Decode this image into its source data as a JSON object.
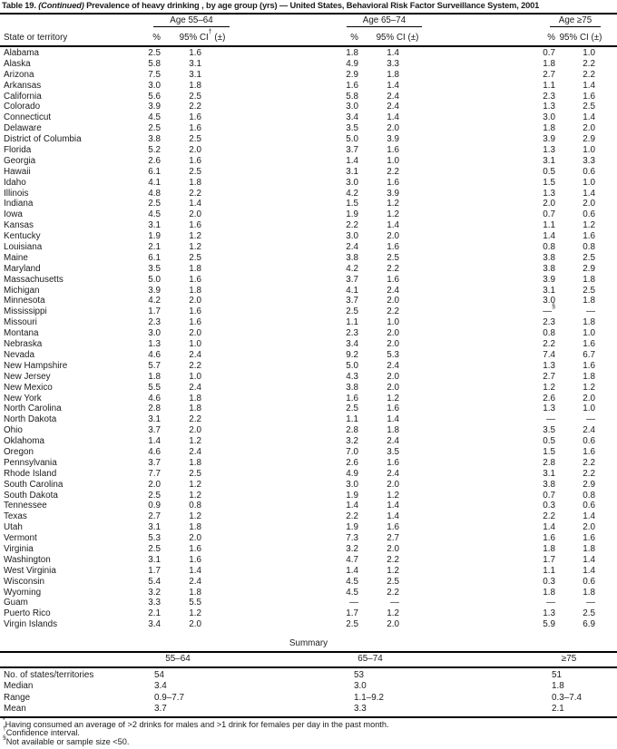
{
  "title": {
    "part1": "Table 19. ",
    "continued": "(Continued)",
    "part2": " Prevalence of heavy drinking",
    "footnote_marker": "*",
    "part3": ", by age group (yrs) — United States, Behavioral Risk Factor Surveillance System, 2001"
  },
  "header": {
    "state_col": "State or territory",
    "groups": [
      {
        "label": "Age 55–64",
        "pct": "%",
        "ci": "95% CI",
        "ci_marker": "†",
        "ci_suffix": " (±)"
      },
      {
        "label": "Age 65–74",
        "pct": "%",
        "ci": "95% CI",
        "ci_marker": "",
        "ci_suffix": " (±)"
      },
      {
        "label": "Age ≥75",
        "pct": "%",
        "ci": "95% CI",
        "ci_marker": "",
        "ci_suffix": " (±)"
      }
    ]
  },
  "table": {
    "rows": [
      [
        "Alabama",
        "2.5",
        "1.6",
        "1.8",
        "1.4",
        "0.7",
        "1.0"
      ],
      [
        "Alaska",
        "5.8",
        "3.1",
        "4.9",
        "3.3",
        "1.8",
        "2.2"
      ],
      [
        "Arizona",
        "7.5",
        "3.1",
        "2.9",
        "1.8",
        "2.7",
        "2.2"
      ],
      [
        "Arkansas",
        "3.0",
        "1.8",
        "1.6",
        "1.4",
        "1.1",
        "1.4"
      ],
      [
        "California",
        "5.6",
        "2.5",
        "5.8",
        "2.4",
        "2.3",
        "1.6"
      ],
      [
        "Colorado",
        "3.9",
        "2.2",
        "3.0",
        "2.4",
        "1.3",
        "2.5"
      ],
      [
        "Connecticut",
        "4.5",
        "1.6",
        "3.4",
        "1.4",
        "3.0",
        "1.4"
      ],
      [
        "Delaware",
        "2.5",
        "1.6",
        "3.5",
        "2.0",
        "1.8",
        "2.0"
      ],
      [
        "District of Columbia",
        "3.8",
        "2.5",
        "5.0",
        "3.9",
        "3.9",
        "2.9"
      ],
      [
        "Florida",
        "5.2",
        "2.0",
        "3.7",
        "1.6",
        "1.3",
        "1.0"
      ],
      [
        "Georgia",
        "2.6",
        "1.6",
        "1.4",
        "1.0",
        "3.1",
        "3.3"
      ],
      [
        "Hawaii",
        "6.1",
        "2.5",
        "3.1",
        "2.2",
        "0.5",
        "0.6"
      ],
      [
        "Idaho",
        "4.1",
        "1.8",
        "3.0",
        "1.6",
        "1.5",
        "1.0"
      ],
      [
        "Illinois",
        "4.8",
        "2.2",
        "4.2",
        "3.9",
        "1.3",
        "1.4"
      ],
      [
        "Indiana",
        "2.5",
        "1.4",
        "1.5",
        "1.2",
        "2.0",
        "2.0"
      ],
      [
        "Iowa",
        "4.5",
        "2.0",
        "1.9",
        "1.2",
        "0.7",
        "0.6"
      ],
      [
        "Kansas",
        "3.1",
        "1.6",
        "2.2",
        "1.4",
        "1.1",
        "1.2"
      ],
      [
        "Kentucky",
        "1.9",
        "1.2",
        "3.0",
        "2.0",
        "1.4",
        "1.6"
      ],
      [
        "Louisiana",
        "2.1",
        "1.2",
        "2.4",
        "1.6",
        "0.8",
        "0.8"
      ],
      [
        "Maine",
        "6.1",
        "2.5",
        "3.8",
        "2.5",
        "3.8",
        "2.5"
      ],
      [
        "Maryland",
        "3.5",
        "1.8",
        "4.2",
        "2.2",
        "3.8",
        "2.9"
      ],
      [
        "Massachusetts",
        "5.0",
        "1.6",
        "3.7",
        "1.6",
        "3.9",
        "1.8"
      ],
      [
        "Michigan",
        "3.9",
        "1.8",
        "4.1",
        "2.4",
        "3.1",
        "2.5"
      ],
      [
        "Minnesota",
        "4.2",
        "2.0",
        "3.7",
        "2.0",
        "3.0",
        "1.8"
      ],
      [
        "Mississippi",
        "1.7",
        "1.6",
        "2.5",
        "2.2",
        "—§",
        "—"
      ],
      [
        "Missouri",
        "2.3",
        "1.6",
        "1.1",
        "1.0",
        "2.3",
        "1.8"
      ],
      [
        "Montana",
        "3.0",
        "2.0",
        "2.3",
        "2.0",
        "0.8",
        "1.0"
      ],
      [
        "Nebraska",
        "1.3",
        "1.0",
        "3.4",
        "2.0",
        "2.2",
        "1.6"
      ],
      [
        "Nevada",
        "4.6",
        "2.4",
        "9.2",
        "5.3",
        "7.4",
        "6.7"
      ],
      [
        "New Hampshire",
        "5.7",
        "2.2",
        "5.0",
        "2.4",
        "1.3",
        "1.6"
      ],
      [
        "New Jersey",
        "1.8",
        "1.0",
        "4.3",
        "2.0",
        "2.7",
        "1.8"
      ],
      [
        "New Mexico",
        "5.5",
        "2.4",
        "3.8",
        "2.0",
        "1.2",
        "1.2"
      ],
      [
        "New York",
        "4.6",
        "1.8",
        "1.6",
        "1.2",
        "2.6",
        "2.0"
      ],
      [
        "North Carolina",
        "2.8",
        "1.8",
        "2.5",
        "1.6",
        "1.3",
        "1.0"
      ],
      [
        "North Dakota",
        "3.1",
        "2.2",
        "1.1",
        "1.4",
        "—",
        "—"
      ],
      [
        "Ohio",
        "3.7",
        "2.0",
        "2.8",
        "1.8",
        "3.5",
        "2.4"
      ],
      [
        "Oklahoma",
        "1.4",
        "1.2",
        "3.2",
        "2.4",
        "0.5",
        "0.6"
      ],
      [
        "Oregon",
        "4.6",
        "2.4",
        "7.0",
        "3.5",
        "1.5",
        "1.6"
      ],
      [
        "Pennsylvania",
        "3.7",
        "1.8",
        "2.6",
        "1.6",
        "2.8",
        "2.2"
      ],
      [
        "Rhode Island",
        "7.7",
        "2.5",
        "4.9",
        "2.4",
        "3.1",
        "2.2"
      ],
      [
        "South Carolina",
        "2.0",
        "1.2",
        "3.0",
        "2.0",
        "3.8",
        "2.9"
      ],
      [
        "South Dakota",
        "2.5",
        "1.2",
        "1.9",
        "1.2",
        "0.7",
        "0.8"
      ],
      [
        "Tennessee",
        "0.9",
        "0.8",
        "1.4",
        "1.4",
        "0.3",
        "0.6"
      ],
      [
        "Texas",
        "2.7",
        "1.2",
        "2.2",
        "1.4",
        "2.2",
        "1.4"
      ],
      [
        "Utah",
        "3.1",
        "1.8",
        "1.9",
        "1.6",
        "1.4",
        "2.0"
      ],
      [
        "Vermont",
        "5.3",
        "2.0",
        "7.3",
        "2.7",
        "1.6",
        "1.6"
      ],
      [
        "Virginia",
        "2.5",
        "1.6",
        "3.2",
        "2.0",
        "1.8",
        "1.8"
      ],
      [
        "Washington",
        "3.1",
        "1.6",
        "4.7",
        "2.2",
        "1.7",
        "1.4"
      ],
      [
        "West Virginia",
        "1.7",
        "1.4",
        "1.4",
        "1.2",
        "1.1",
        "1.4"
      ],
      [
        "Wisconsin",
        "5.4",
        "2.4",
        "4.5",
        "2.5",
        "0.3",
        "0.6"
      ],
      [
        "Wyoming",
        "3.2",
        "1.8",
        "4.5",
        "2.2",
        "1.8",
        "1.8"
      ],
      [
        "Guam",
        "3.3",
        "5.5",
        "—",
        "—",
        "—",
        "—"
      ],
      [
        "Puerto Rico",
        "2.1",
        "1.2",
        "1.7",
        "1.2",
        "1.3",
        "2.5"
      ],
      [
        "Virgin Islands",
        "3.4",
        "2.0",
        "2.5",
        "2.0",
        "5.9",
        "6.9"
      ]
    ]
  },
  "summary": {
    "title": "Summary",
    "columns": [
      "55–64",
      "65–74",
      "≥75"
    ],
    "rows": [
      [
        "No. of states/territories",
        "54",
        "53",
        "51"
      ],
      [
        "Median",
        "3.4",
        "3.0",
        "1.8"
      ],
      [
        "Range",
        "0.9–7.7",
        "1.1–9.2",
        "0.3–7.4"
      ],
      [
        "Mean",
        "3.7",
        "3.3",
        "2.1"
      ]
    ]
  },
  "footnotes": [
    {
      "marker": "*",
      "text": "Having consumed an average of >2 drinks for males and >1 drink for females per day in the past month."
    },
    {
      "marker": "†",
      "text": "Confidence interval."
    },
    {
      "marker": "§",
      "text": "Not available or sample size <50."
    }
  ]
}
